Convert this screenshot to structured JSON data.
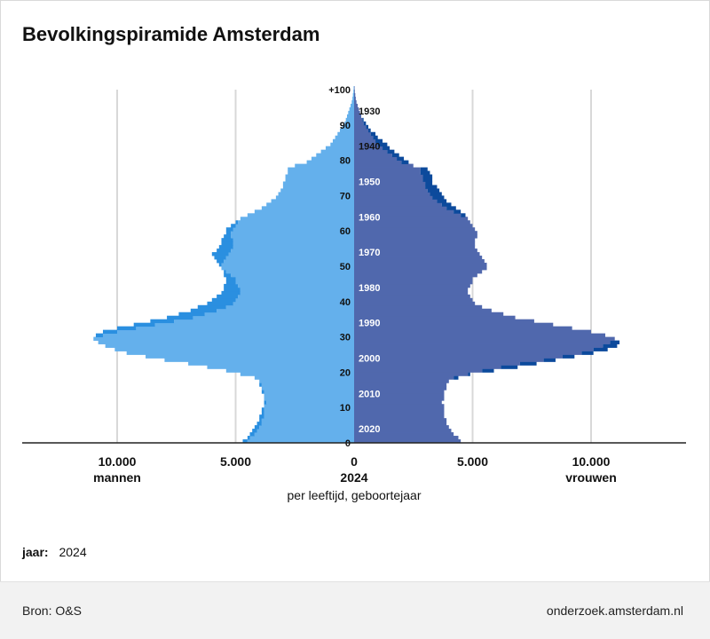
{
  "title": "Bevolkingspiramide Amsterdam",
  "jaar_label": "jaar:",
  "jaar_value": "2024",
  "footer": {
    "source": "Bron: O&S",
    "site": "onderzoek.amsterdam.nl"
  },
  "colors": {
    "men_base": "#64b0ec",
    "men_excess": "#2a8fe0",
    "women_base": "#5068ad",
    "women_excess": "#0c4a9c",
    "axis": "#222222",
    "grid": "#d8d8d8"
  },
  "chart_data": {
    "type": "population-pyramid",
    "title": "Bevolkingspiramide Amsterdam",
    "xlim": [
      -12500,
      12500
    ],
    "ylim": [
      0,
      100
    ],
    "x_ticks": [
      {
        "value": -10000,
        "label": "10.000",
        "sublabel": "mannen"
      },
      {
        "value": -5000,
        "label": "5.000",
        "sublabel": ""
      },
      {
        "value": 0,
        "label": "0",
        "sublabel": "2024"
      },
      {
        "value": 5000,
        "label": "5.000",
        "sublabel": ""
      },
      {
        "value": 10000,
        "label": "10.000",
        "sublabel": "vrouwen"
      }
    ],
    "xlabel": "per leeftijd, geboortejaar",
    "age_ticks": [
      {
        "age": 0,
        "label": "0"
      },
      {
        "age": 10,
        "label": "10"
      },
      {
        "age": 20,
        "label": "20"
      },
      {
        "age": 30,
        "label": "30"
      },
      {
        "age": 40,
        "label": "40"
      },
      {
        "age": 50,
        "label": "50"
      },
      {
        "age": 60,
        "label": "60"
      },
      {
        "age": 70,
        "label": "70"
      },
      {
        "age": 80,
        "label": "80"
      },
      {
        "age": 90,
        "label": "90"
      },
      {
        "age": 100,
        "label": "+100"
      }
    ],
    "birth_year_ticks": [
      {
        "age": 4,
        "label": "2020"
      },
      {
        "age": 14,
        "label": "2010"
      },
      {
        "age": 24,
        "label": "2000"
      },
      {
        "age": 34,
        "label": "1990"
      },
      {
        "age": 44,
        "label": "1980"
      },
      {
        "age": 54,
        "label": "1970"
      },
      {
        "age": 64,
        "label": "1960"
      },
      {
        "age": 74,
        "label": "1950"
      },
      {
        "age": 84,
        "label": "1940"
      },
      {
        "age": 94,
        "label": "1930"
      }
    ],
    "series": [
      {
        "name": "mannen",
        "values": [
          4700,
          4500,
          4400,
          4300,
          4200,
          4100,
          4000,
          4000,
          3900,
          3900,
          3800,
          3800,
          3800,
          3800,
          3900,
          3900,
          4000,
          4000,
          4200,
          4800,
          5400,
          6200,
          7000,
          8000,
          8800,
          9600,
          10100,
          10500,
          10800,
          11000,
          10900,
          10600,
          10000,
          9300,
          8600,
          7900,
          7400,
          6900,
          6600,
          6200,
          6000,
          5800,
          5600,
          5500,
          5500,
          5400,
          5400,
          5500,
          5500,
          5600,
          5700,
          5800,
          5900,
          6000,
          5800,
          5700,
          5600,
          5600,
          5500,
          5400,
          5400,
          5200,
          5000,
          4800,
          4500,
          4200,
          3900,
          3700,
          3500,
          3300,
          3200,
          3100,
          3000,
          3000,
          2900,
          2900,
          2800,
          2800,
          2500,
          2000,
          1800,
          1600,
          1400,
          1200,
          1000,
          900,
          800,
          700,
          600,
          500,
          400,
          350,
          300,
          250,
          200,
          150,
          100,
          70,
          50,
          30,
          20
        ]
      },
      {
        "name": "vrouwen",
        "values": [
          4500,
          4400,
          4200,
          4100,
          4000,
          3900,
          3900,
          3800,
          3800,
          3800,
          3800,
          3700,
          3800,
          3800,
          3800,
          3900,
          3900,
          4000,
          4400,
          4900,
          5900,
          6900,
          7700,
          8500,
          9300,
          10100,
          10700,
          11100,
          11200,
          11000,
          10600,
          10000,
          9200,
          8400,
          7600,
          6800,
          6300,
          5800,
          5400,
          5100,
          5000,
          4900,
          4800,
          4800,
          4900,
          5000,
          5000,
          5200,
          5400,
          5600,
          5600,
          5500,
          5400,
          5300,
          5200,
          5100,
          5100,
          5100,
          5200,
          5200,
          5100,
          5000,
          4900,
          4800,
          4700,
          4500,
          4300,
          4100,
          3900,
          3800,
          3700,
          3600,
          3500,
          3300,
          3300,
          3300,
          3200,
          3100,
          2500,
          2300,
          2100,
          1900,
          1700,
          1500,
          1400,
          1200,
          1000,
          900,
          700,
          600,
          500,
          400,
          300,
          250,
          200,
          150,
          100,
          70,
          50,
          30,
          20
        ]
      }
    ]
  }
}
